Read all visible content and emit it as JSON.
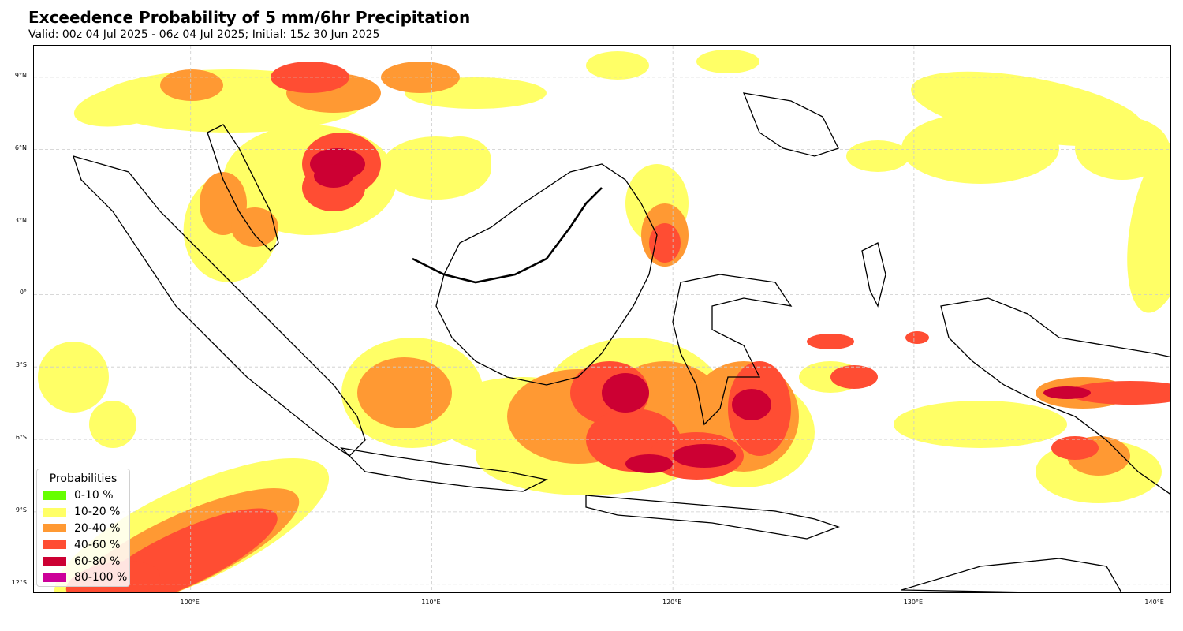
{
  "title": "Exceedence Probability of 5 mm/6hr Precipitation",
  "subtitle": "Valid: 00z 04 Jul 2025 - 06z 04 Jul 2025; Initial: 15z 30 Jun 2025",
  "map": {
    "lat_labels": [
      "9°N",
      "6°N",
      "3°N",
      "0°",
      "3°S",
      "6°S",
      "9°S",
      "12°S"
    ],
    "lon_labels": [
      "100°E",
      "110°E",
      "120°E",
      "130°E",
      "140°E"
    ],
    "lat_values": [
      9,
      6,
      3,
      0,
      -3,
      -6,
      -9,
      -12
    ],
    "lon_values": [
      100,
      110,
      120,
      130,
      140
    ],
    "extent": {
      "lon_min": 93.5,
      "lon_max": 140.7,
      "lat_min": -12.4,
      "lat_max": 10.3
    },
    "gridline_color": "#cccccc",
    "coastline_color": "#000000"
  },
  "legend": {
    "title": "Probabilities",
    "items": [
      {
        "label": "0-10 %",
        "color": "#66ff00"
      },
      {
        "label": "10-20 %",
        "color": "#ffff66"
      },
      {
        "label": "20-40 %",
        "color": "#ff9933"
      },
      {
        "label": "40-60 %",
        "color": "#ff4d33"
      },
      {
        "label": "60-80 %",
        "color": "#cc0033"
      },
      {
        "label": "80-100 %",
        "color": "#cc0099"
      }
    ]
  }
}
